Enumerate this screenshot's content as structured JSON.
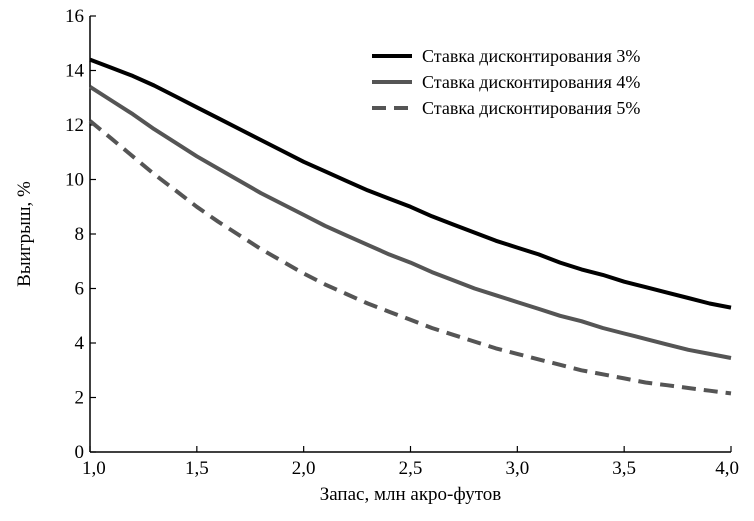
{
  "chart_data": {
    "type": "line",
    "xlabel": "Запас, млн акро-футов",
    "ylabel": "Выигрыш, %",
    "xlim": [
      1.0,
      4.0
    ],
    "ylim": [
      0,
      16
    ],
    "x_ticks": [
      1.0,
      1.5,
      2.0,
      2.5,
      3.0,
      3.5,
      4.0
    ],
    "x_tick_labels": [
      "1,0",
      "1,5",
      "2,0",
      "2,5",
      "3,0",
      "3,5",
      "4,0"
    ],
    "y_ticks": [
      0,
      2,
      4,
      6,
      8,
      10,
      12,
      14,
      16
    ],
    "y_tick_labels": [
      "0",
      "2",
      "4",
      "6",
      "8",
      "10",
      "12",
      "14",
      "16"
    ],
    "grid": false,
    "legend_position": "top-right",
    "x": [
      1.0,
      1.1,
      1.2,
      1.3,
      1.4,
      1.5,
      1.6,
      1.7,
      1.8,
      1.9,
      2.0,
      2.1,
      2.2,
      2.3,
      2.4,
      2.5,
      2.6,
      2.7,
      2.8,
      2.9,
      3.0,
      3.1,
      3.2,
      3.3,
      3.4,
      3.5,
      3.6,
      3.7,
      3.8,
      3.9,
      4.0
    ],
    "series": [
      {
        "name": "Ставка дисконтирования 3%",
        "color": "#000000",
        "style": "solid",
        "values": [
          14.4,
          14.1,
          13.8,
          13.45,
          13.05,
          12.65,
          12.25,
          11.85,
          11.45,
          11.05,
          10.65,
          10.3,
          9.95,
          9.6,
          9.3,
          9.0,
          8.65,
          8.35,
          8.05,
          7.75,
          7.5,
          7.25,
          6.95,
          6.7,
          6.5,
          6.25,
          6.05,
          5.85,
          5.65,
          5.45,
          5.3
        ]
      },
      {
        "name": "Ставка дисконтирования 4%",
        "color": "#555555",
        "style": "solid",
        "values": [
          13.4,
          12.9,
          12.4,
          11.85,
          11.35,
          10.85,
          10.4,
          9.95,
          9.5,
          9.1,
          8.7,
          8.3,
          7.95,
          7.6,
          7.25,
          6.95,
          6.6,
          6.3,
          6.0,
          5.75,
          5.5,
          5.25,
          5.0,
          4.8,
          4.55,
          4.35,
          4.15,
          3.95,
          3.75,
          3.6,
          3.45
        ]
      },
      {
        "name": "Ставка дисконтирования 5%",
        "color": "#555555",
        "style": "dashed",
        "values": [
          12.15,
          11.5,
          10.85,
          10.2,
          9.6,
          9.0,
          8.45,
          7.95,
          7.45,
          7.0,
          6.55,
          6.15,
          5.8,
          5.45,
          5.15,
          4.85,
          4.55,
          4.3,
          4.05,
          3.8,
          3.6,
          3.4,
          3.2,
          3.0,
          2.85,
          2.7,
          2.55,
          2.45,
          2.35,
          2.25,
          2.15
        ]
      }
    ]
  }
}
